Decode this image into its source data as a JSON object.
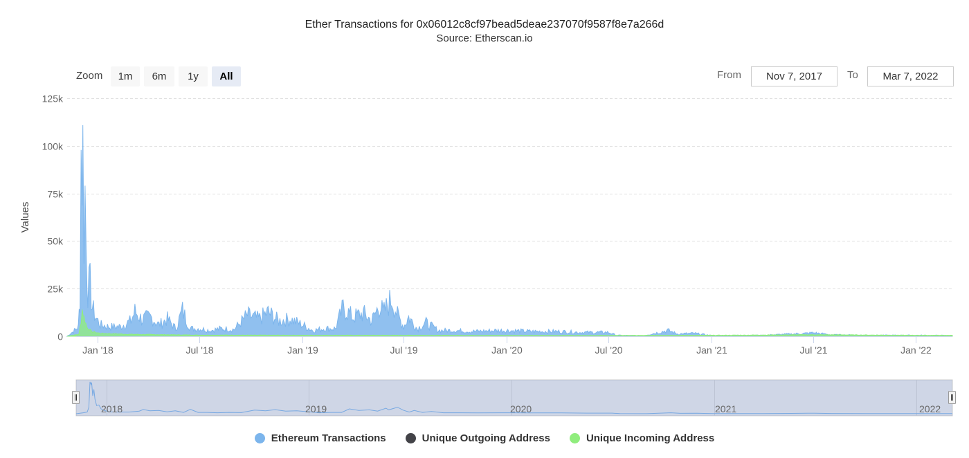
{
  "title": "Ether Transactions for 0x06012c8cf97bead5deae237070f9587f8e7a266d",
  "subtitle": "Source: Etherscan.io",
  "zoom": {
    "label": "Zoom",
    "buttons": [
      "1m",
      "6m",
      "1y",
      "All"
    ],
    "active": "All"
  },
  "range": {
    "from_label": "From",
    "from_value": "Nov 7, 2017",
    "to_label": "To",
    "to_value": "Mar 7, 2022"
  },
  "navigator": {
    "labels": [
      "2018",
      "2019",
      "2020",
      "2021",
      "2022"
    ]
  },
  "legend": [
    {
      "name": "Ethereum Transactions",
      "color": "#7cb5ec"
    },
    {
      "name": "Unique Outgoing Address",
      "color": "#434348"
    },
    {
      "name": "Unique Incoming Address",
      "color": "#90ed7d"
    }
  ],
  "chart_data": {
    "type": "area",
    "title": "Ether Transactions for 0x06012c8cf97bead5deae237070f9587f8e7a266d",
    "subtitle": "Source: Etherscan.io",
    "xlabel": "",
    "ylabel": "Values",
    "ylim": [
      0,
      125000
    ],
    "yticks": [
      0,
      25000,
      50000,
      75000,
      100000,
      125000
    ],
    "ytick_labels": [
      "0",
      "25k",
      "50k",
      "75k",
      "100k",
      "125k"
    ],
    "xlim": [
      "2017-11-07",
      "2022-03-07"
    ],
    "xticks": [
      "2018-01-01",
      "2018-07-01",
      "2019-01-01",
      "2019-07-01",
      "2020-01-01",
      "2020-07-01",
      "2021-01-01",
      "2021-07-01",
      "2022-01-01"
    ],
    "xtick_labels": [
      "Jan '18",
      "Jul '18",
      "Jan '19",
      "Jul '19",
      "Jan '20",
      "Jul '20",
      "Jan '21",
      "Jul '21",
      "Jan '22"
    ],
    "grid": true,
    "legend_position": "bottom",
    "series": [
      {
        "name": "Ethereum Transactions",
        "color": "#7cb5ec",
        "points": [
          [
            "2017-11-07",
            0
          ],
          [
            "2017-11-20",
            3000
          ],
          [
            "2017-11-27",
            5000
          ],
          [
            "2017-11-30",
            20000
          ],
          [
            "2017-12-02",
            98000
          ],
          [
            "2017-12-04",
            90000
          ],
          [
            "2017-12-05",
            96000
          ],
          [
            "2017-12-07",
            55000
          ],
          [
            "2017-12-09",
            75000
          ],
          [
            "2017-12-11",
            45000
          ],
          [
            "2017-12-14",
            25000
          ],
          [
            "2017-12-18",
            27000
          ],
          [
            "2017-12-22",
            15000
          ],
          [
            "2017-12-28",
            10000
          ],
          [
            "2018-01-05",
            6000
          ],
          [
            "2018-01-20",
            5000
          ],
          [
            "2018-02-10",
            5000
          ],
          [
            "2018-03-01",
            8000
          ],
          [
            "2018-03-08",
            13000
          ],
          [
            "2018-03-20",
            9000
          ],
          [
            "2018-04-05",
            10000
          ],
          [
            "2018-04-20",
            6000
          ],
          [
            "2018-05-05",
            9000
          ],
          [
            "2018-05-20",
            4000
          ],
          [
            "2018-06-01",
            13500
          ],
          [
            "2018-06-15",
            4000
          ],
          [
            "2018-07-01",
            4000
          ],
          [
            "2018-07-20",
            3000
          ],
          [
            "2018-08-10",
            4000
          ],
          [
            "2018-09-01",
            3500
          ],
          [
            "2018-09-25",
            11000
          ],
          [
            "2018-10-15",
            9000
          ],
          [
            "2018-11-01",
            12500
          ],
          [
            "2018-11-20",
            8000
          ],
          [
            "2018-12-10",
            9000
          ],
          [
            "2019-01-01",
            6000
          ],
          [
            "2019-01-20",
            3000
          ],
          [
            "2019-02-10",
            4000
          ],
          [
            "2019-03-01",
            4000
          ],
          [
            "2019-03-15",
            15000
          ],
          [
            "2019-04-01",
            10000
          ],
          [
            "2019-04-20",
            12000
          ],
          [
            "2019-05-05",
            8000
          ],
          [
            "2019-05-20",
            17000
          ],
          [
            "2019-05-25",
            12000
          ],
          [
            "2019-06-10",
            20000
          ],
          [
            "2019-06-20",
            11000
          ],
          [
            "2019-07-01",
            5000
          ],
          [
            "2019-07-10",
            10000
          ],
          [
            "2019-07-25",
            4000
          ],
          [
            "2019-08-10",
            7000
          ],
          [
            "2019-09-01",
            3000
          ],
          [
            "2019-10-01",
            3000
          ],
          [
            "2019-11-01",
            2500
          ],
          [
            "2019-12-15",
            3000
          ],
          [
            "2020-01-01",
            3000
          ],
          [
            "2020-02-15",
            2500
          ],
          [
            "2020-04-01",
            2500
          ],
          [
            "2020-05-15",
            2000
          ],
          [
            "2020-07-01",
            2000
          ],
          [
            "2020-07-15",
            500
          ],
          [
            "2020-09-01",
            300
          ],
          [
            "2020-10-15",
            3000
          ],
          [
            "2020-11-01",
            1200
          ],
          [
            "2020-12-01",
            1500
          ],
          [
            "2021-01-01",
            400
          ],
          [
            "2021-04-01",
            500
          ],
          [
            "2021-06-20",
            1500
          ],
          [
            "2021-07-01",
            1800
          ],
          [
            "2021-08-01",
            800
          ],
          [
            "2021-10-01",
            500
          ],
          [
            "2022-01-01",
            500
          ],
          [
            "2022-03-07",
            400
          ]
        ]
      },
      {
        "name": "Unique Outgoing Address",
        "color": "#434348",
        "points": [
          [
            "2017-11-07",
            0
          ],
          [
            "2022-03-07",
            0
          ]
        ]
      },
      {
        "name": "Unique Incoming Address",
        "color": "#90ed7d",
        "points": [
          [
            "2017-11-07",
            0
          ],
          [
            "2017-11-28",
            1000
          ],
          [
            "2017-12-02",
            8000
          ],
          [
            "2017-12-04",
            14000
          ],
          [
            "2017-12-07",
            10000
          ],
          [
            "2017-12-12",
            5000
          ],
          [
            "2017-12-20",
            2500
          ],
          [
            "2018-01-05",
            1500
          ],
          [
            "2018-03-01",
            1000
          ],
          [
            "2018-07-01",
            600
          ],
          [
            "2019-01-01",
            500
          ],
          [
            "2019-07-01",
            500
          ],
          [
            "2020-01-01",
            400
          ],
          [
            "2020-07-01",
            400
          ],
          [
            "2021-01-01",
            500
          ],
          [
            "2021-07-01",
            800
          ],
          [
            "2022-01-01",
            500
          ],
          [
            "2022-03-07",
            500
          ]
        ]
      }
    ]
  }
}
